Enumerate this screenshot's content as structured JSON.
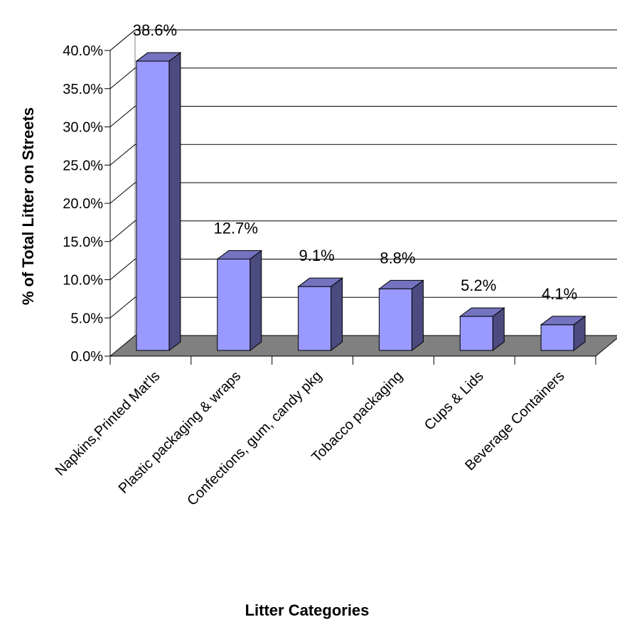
{
  "chart_data": {
    "type": "bar",
    "style": "3d-column",
    "categories": [
      "Napkins,Printed Mat'ls",
      "Plastic packaging & wraps",
      "Confections, gum, candy pkg",
      "Tobacco packaging",
      "Cups & Lids",
      "Beverage Containers"
    ],
    "values": [
      38.6,
      12.7,
      9.1,
      8.8,
      5.2,
      4.1
    ],
    "data_labels": [
      "38.6%",
      "12.7%",
      "9.1%",
      "8.8%",
      "5.2%",
      "4.1%"
    ],
    "y_ticks": [
      "0.0%",
      "5.0%",
      "10.0%",
      "15.0%",
      "20.0%",
      "25.0%",
      "30.0%",
      "35.0%",
      "40.0%"
    ],
    "ylim": [
      0,
      40
    ],
    "xlabel": "Litter Categories",
    "ylabel": "% of Total Litter on Streets",
    "grid": true,
    "legend": "none",
    "colors": {
      "bar_front": "#9999ff",
      "bar_side": "#4b4b7f",
      "bar_top": "#7373bf",
      "floor": "#808080",
      "grid": "#000000"
    }
  }
}
